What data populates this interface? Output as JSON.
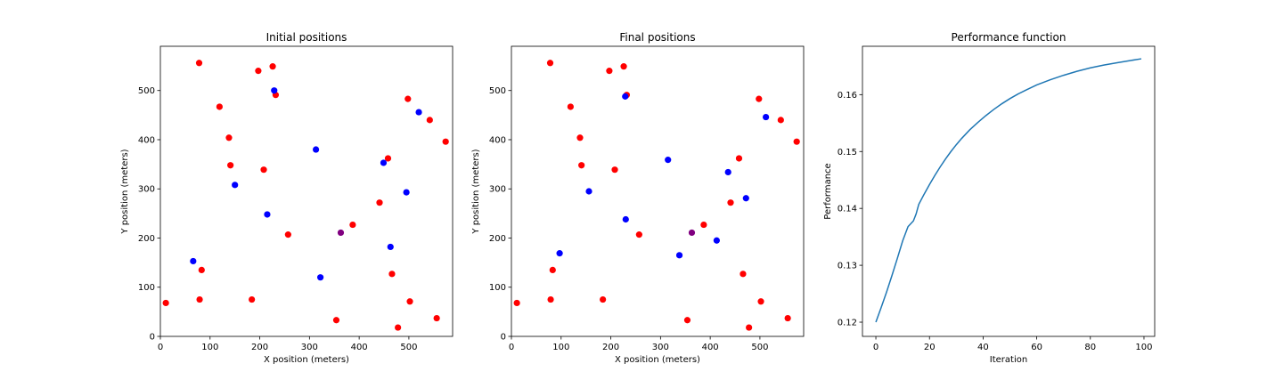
{
  "chart_data": [
    {
      "type": "scatter",
      "title": "Initial positions",
      "xlabel": "X position (meters)",
      "ylabel": "Y position (meters)",
      "xlim": [
        0,
        588
      ],
      "ylim": [
        0,
        590
      ],
      "xticks": [
        0,
        100,
        200,
        300,
        400,
        500
      ],
      "yticks": [
        0,
        100,
        200,
        300,
        400,
        500
      ],
      "grid": false,
      "series": [
        {
          "color": "#ff0000",
          "points": [
            [
              78,
              556
            ],
            [
              197,
              540
            ],
            [
              226,
              549
            ],
            [
              232,
              491
            ],
            [
              119,
              467
            ],
            [
              138,
              404
            ],
            [
              141,
              348
            ],
            [
              208,
              339
            ],
            [
              498,
              483
            ],
            [
              542,
              440
            ],
            [
              574,
              396
            ],
            [
              458,
              362
            ],
            [
              441,
              272
            ],
            [
              387,
              227
            ],
            [
              257,
              207
            ],
            [
              83,
              135
            ],
            [
              79,
              75
            ],
            [
              184,
              75
            ],
            [
              11,
              68
            ],
            [
              466,
              127
            ],
            [
              502,
              71
            ],
            [
              354,
              33
            ],
            [
              556,
              37
            ],
            [
              478,
              18
            ]
          ]
        },
        {
          "color": "#0000ff",
          "points": [
            [
              229,
              500
            ],
            [
              520,
              456
            ],
            [
              313,
              380
            ],
            [
              449,
              353
            ],
            [
              150,
              308
            ],
            [
              495,
              293
            ],
            [
              215,
              248
            ],
            [
              463,
              182
            ],
            [
              66,
              153
            ],
            [
              322,
              120
            ]
          ]
        },
        {
          "color": "#800080",
          "points": [
            [
              363,
              211
            ]
          ]
        }
      ]
    },
    {
      "type": "scatter",
      "title": "Final positions",
      "xlabel": "X position (meters)",
      "ylabel": "Y position (meters)",
      "xlim": [
        0,
        588
      ],
      "ylim": [
        0,
        590
      ],
      "xticks": [
        0,
        100,
        200,
        300,
        400,
        500
      ],
      "yticks": [
        0,
        100,
        200,
        300,
        400,
        500
      ],
      "grid": false,
      "series": [
        {
          "color": "#ff0000",
          "points": [
            [
              78,
              556
            ],
            [
              197,
              540
            ],
            [
              226,
              549
            ],
            [
              232,
              491
            ],
            [
              119,
              467
            ],
            [
              138,
              404
            ],
            [
              141,
              348
            ],
            [
              208,
              339
            ],
            [
              498,
              483
            ],
            [
              542,
              440
            ],
            [
              574,
              396
            ],
            [
              458,
              362
            ],
            [
              441,
              272
            ],
            [
              387,
              227
            ],
            [
              257,
              207
            ],
            [
              83,
              135
            ],
            [
              79,
              75
            ],
            [
              184,
              75
            ],
            [
              11,
              68
            ],
            [
              466,
              127
            ],
            [
              502,
              71
            ],
            [
              354,
              33
            ],
            [
              556,
              37
            ],
            [
              478,
              18
            ]
          ]
        },
        {
          "color": "#0000ff",
          "points": [
            [
              229,
              488
            ],
            [
              512,
              446
            ],
            [
              315,
              359
            ],
            [
              436,
              334
            ],
            [
              156,
              295
            ],
            [
              472,
              281
            ],
            [
              230,
              238
            ],
            [
              413,
              195
            ],
            [
              97,
              169
            ],
            [
              338,
              165
            ]
          ]
        },
        {
          "color": "#800080",
          "points": [
            [
              363,
              211
            ]
          ]
        }
      ]
    },
    {
      "type": "line",
      "title": "Performance function",
      "xlabel": "Iteration",
      "ylabel": "Performance",
      "xlim": [
        -5,
        104
      ],
      "ylim": [
        0.1175,
        0.1685
      ],
      "xticks": [
        0,
        20,
        40,
        60,
        80,
        100
      ],
      "yticks": [
        0.12,
        0.13,
        0.14,
        0.15,
        0.16
      ],
      "grid": false,
      "series": [
        {
          "color": "#1f77b4",
          "points": [
            [
              0,
              0.12
            ],
            [
              2,
              0.1226
            ],
            [
              4,
              0.1253
            ],
            [
              6,
              0.1282
            ],
            [
              8,
              0.1312
            ],
            [
              10,
              0.1343
            ],
            [
              12,
              0.1368
            ],
            [
              14,
              0.1378
            ],
            [
              15,
              0.139
            ],
            [
              16,
              0.1407
            ],
            [
              18,
              0.1425
            ],
            [
              20,
              0.1442
            ],
            [
              22,
              0.1458
            ],
            [
              24,
              0.1473
            ],
            [
              26,
              0.1487
            ],
            [
              28,
              0.15
            ],
            [
              30,
              0.1512
            ],
            [
              32,
              0.1523
            ],
            [
              35,
              0.1538
            ],
            [
              38,
              0.1551
            ],
            [
              41,
              0.1563
            ],
            [
              44,
              0.1574
            ],
            [
              47,
              0.1584
            ],
            [
              50,
              0.1593
            ],
            [
              53,
              0.1601
            ],
            [
              56,
              0.1608
            ],
            [
              60,
              0.1617
            ],
            [
              65,
              0.1626
            ],
            [
              70,
              0.1634
            ],
            [
              75,
              0.1641
            ],
            [
              80,
              0.1647
            ],
            [
              85,
              0.1652
            ],
            [
              90,
              0.1656
            ],
            [
              95,
              0.166
            ],
            [
              99,
              0.1663
            ]
          ]
        }
      ]
    }
  ]
}
